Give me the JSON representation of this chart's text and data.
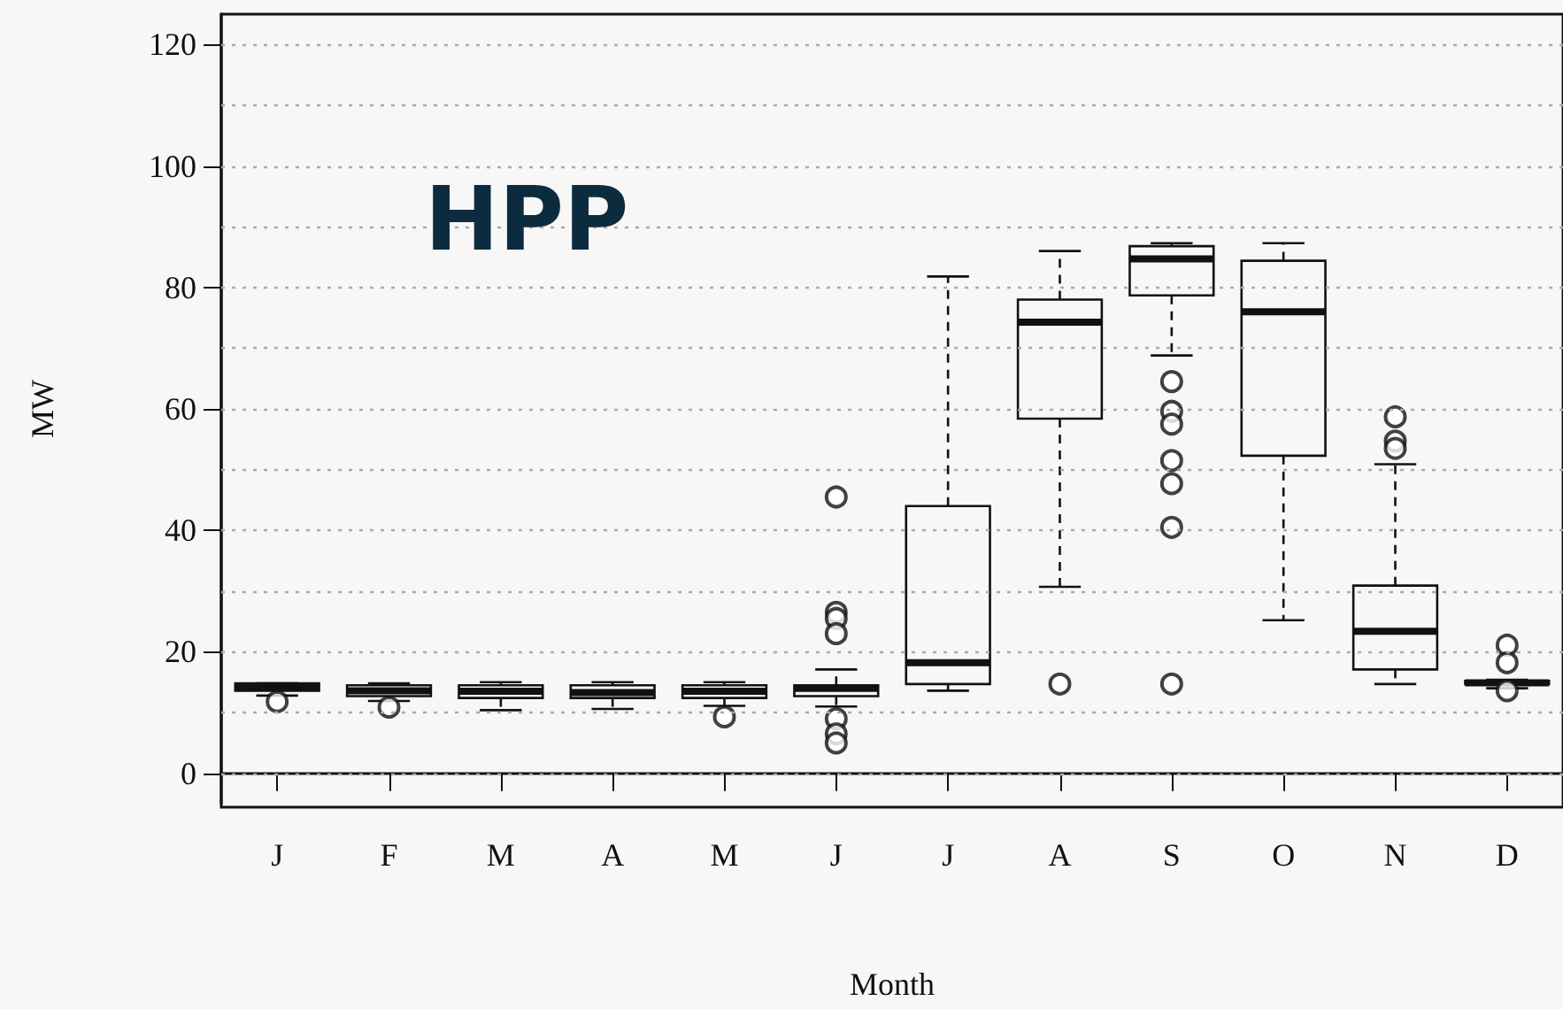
{
  "chart_data": {
    "type": "box",
    "title": "HPP",
    "xlabel": "Month",
    "ylabel": "MW",
    "categories": [
      "J",
      "F",
      "M",
      "A",
      "M",
      "J",
      "J",
      "A",
      "S",
      "O",
      "N",
      "D"
    ],
    "ylim": [
      -5,
      125
    ],
    "yticks": [
      0,
      {
        "value": 10,
        "label": null
      },
      20,
      {
        "value": 30,
        "label": null
      },
      40,
      {
        "value": 50,
        "label": null
      },
      60,
      {
        "value": 70,
        "label": null
      },
      80,
      {
        "value": 90,
        "label": null
      },
      100,
      {
        "value": 110,
        "label": null
      },
      120
    ],
    "grid": "y",
    "marker": "circle",
    "boxes": [
      {
        "low": 12.8,
        "q1": 13.6,
        "median": 14.2,
        "q3": 14.8,
        "high": 14.8,
        "outliers": [
          11.8
        ]
      },
      {
        "low": 11.9,
        "q1": 12.7,
        "median": 13.6,
        "q3": 14.5,
        "high": 14.8,
        "outliers": [
          10.9
        ]
      },
      {
        "low": 10.4,
        "q1": 12.4,
        "median": 13.5,
        "q3": 14.5,
        "high": 15
      },
      {
        "low": 10.6,
        "q1": 12.4,
        "median": 13.3,
        "q3": 14.5,
        "high": 15
      },
      {
        "low": 11.1,
        "q1": 12.4,
        "median": 13.5,
        "q3": 14.5,
        "high": 15,
        "outliers": [
          9.3
        ]
      },
      {
        "low": 11,
        "q1": 12.7,
        "median": 14,
        "q3": 14.5,
        "high": 17.1,
        "outliers": [
          45.5,
          26.5,
          25.5,
          23,
          9,
          6.5,
          5
        ]
      },
      {
        "low": 13.6,
        "q1": 14.7,
        "median": 18.2,
        "q3": 44,
        "high": 81.8
      },
      {
        "low": 30.7,
        "q1": 58.4,
        "median": 74.3,
        "q3": 78,
        "high": 86,
        "outliers": [
          14.7
        ]
      },
      {
        "low": 68.8,
        "q1": 78.7,
        "median": 84.7,
        "q3": 86.8,
        "high": 87.3,
        "outliers": [
          64.5,
          59.6,
          57.5,
          51.5,
          47.7,
          40.5,
          14.7
        ]
      },
      {
        "low": 25.2,
        "q1": 52.3,
        "median": 76,
        "q3": 84.4,
        "high": 87.3
      },
      {
        "low": 14.7,
        "q1": 17.1,
        "median": 23.4,
        "q3": 30.9,
        "high": 50.9,
        "outliers": [
          58.7,
          54.7,
          53.5
        ]
      },
      {
        "low": 14,
        "q1": 14.7,
        "median": 14.9,
        "q3": 15.2,
        "high": 15.4,
        "outliers": [
          21.1,
          18.2,
          13.6
        ]
      }
    ]
  }
}
